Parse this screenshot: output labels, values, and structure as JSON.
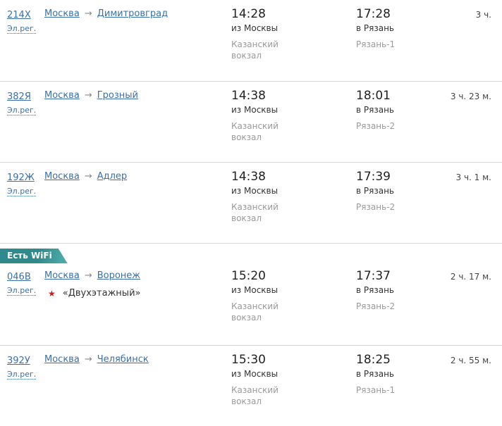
{
  "labels": {
    "ereg": "Эл.рег.",
    "arrow": "→",
    "star": "★",
    "wifi_badge": "Есть WiFi"
  },
  "colors": {
    "link": "#3a70a6",
    "badge_background": "#2e8a8c",
    "star": "#c41e1e",
    "separator": "#d8d8d8"
  },
  "rows": [
    {
      "train_number": "214Х",
      "origin": "Москва",
      "destination": "Димитровград",
      "departure": {
        "time": "14:28",
        "direction": "из Москвы",
        "station": "Казанский вокзал"
      },
      "arrival": {
        "time": "17:28",
        "direction": "в Рязань",
        "station": "Рязань-1"
      },
      "duration": "3 ч."
    },
    {
      "train_number": "382Я",
      "origin": "Москва",
      "destination": "Грозный",
      "departure": {
        "time": "14:38",
        "direction": "из Москвы",
        "station": "Казанский вокзал"
      },
      "arrival": {
        "time": "18:01",
        "direction": "в Рязань",
        "station": "Рязань-2"
      },
      "duration": "3 ч. 23 м."
    },
    {
      "train_number": "192Ж",
      "origin": "Москва",
      "destination": "Адлер",
      "departure": {
        "time": "14:38",
        "direction": "из Москвы",
        "station": "Казанский вокзал"
      },
      "arrival": {
        "time": "17:39",
        "direction": "в Рязань",
        "station": "Рязань-2"
      },
      "duration": "3 ч. 1 м."
    },
    {
      "train_number": "046В",
      "origin": "Москва",
      "destination": "Воронеж",
      "badge": "Есть WiFi",
      "train_name": "«Двухэтажный»",
      "departure": {
        "time": "15:20",
        "direction": "из Москвы",
        "station": "Казанский вокзал"
      },
      "arrival": {
        "time": "17:37",
        "direction": "в Рязань",
        "station": "Рязань-2"
      },
      "duration": "2 ч. 17 м."
    },
    {
      "train_number": "392У",
      "origin": "Москва",
      "destination": "Челябинск",
      "departure": {
        "time": "15:30",
        "direction": "из Москвы",
        "station": "Казанский вокзал"
      },
      "arrival": {
        "time": "18:25",
        "direction": "в Рязань",
        "station": "Рязань-1"
      },
      "duration": "2 ч. 55 м."
    }
  ]
}
